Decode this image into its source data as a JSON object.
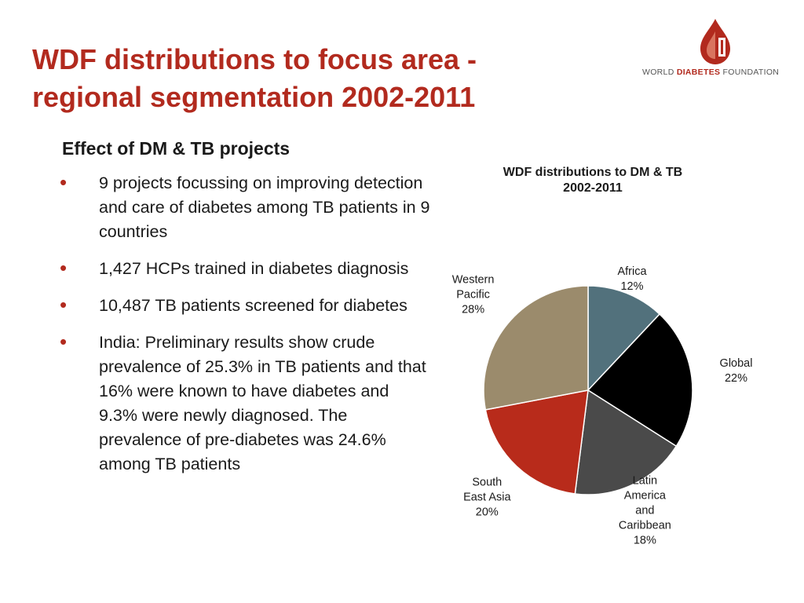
{
  "title": {
    "line1": "WDF distributions to focus area -",
    "line2": "regional segmentation 2002-2011"
  },
  "logo": {
    "text_pre": "WORLD ",
    "text_bold": "DIABETES",
    "text_post": " FOUNDATION",
    "color": "#b22a1e"
  },
  "content": {
    "subheading": "Effect of DM & TB projects",
    "bullets": [
      "9 projects focussing on improving detection and care of diabetes among TB patients in 9 countries",
      "1,427 HCPs trained in diabetes diagnosis",
      "10,487 TB patients screened for diabetes",
      "India: Preliminary results show crude prevalence of 25.3% in TB patients and that 16% were known to have diabetes and 9.3% were newly diagnosed. The prevalence of pre-diabetes was 24.6% among TB patients"
    ]
  },
  "chart_data": {
    "type": "pie",
    "title": "WDF distributions to DM & TB 2002-2011",
    "title_lines": [
      "WDF distributions to DM & TB",
      "2002-2011"
    ],
    "legend": "none (data labels outside slices)",
    "slices": [
      {
        "name": "Africa",
        "label_lines": [
          "Africa"
        ],
        "value": 12,
        "value_label": "12%",
        "color": "#52717c"
      },
      {
        "name": "Global",
        "label_lines": [
          "Global"
        ],
        "value": 22,
        "value_label": "22%",
        "color": "#000000"
      },
      {
        "name": "Latin America and Caribbean",
        "label_lines": [
          "Latin",
          "America",
          "and",
          "Caribbean"
        ],
        "value": 18,
        "value_label": "18%",
        "color": "#4a4a4a"
      },
      {
        "name": "South East Asia",
        "label_lines": [
          "South",
          "East Asia"
        ],
        "value": 20,
        "value_label": "20%",
        "color": "#b82b1b"
      },
      {
        "name": "Western Pacific",
        "label_lines": [
          "Western",
          "Pacific"
        ],
        "value": 28,
        "value_label": "28%",
        "color": "#9b8b6c"
      }
    ]
  }
}
